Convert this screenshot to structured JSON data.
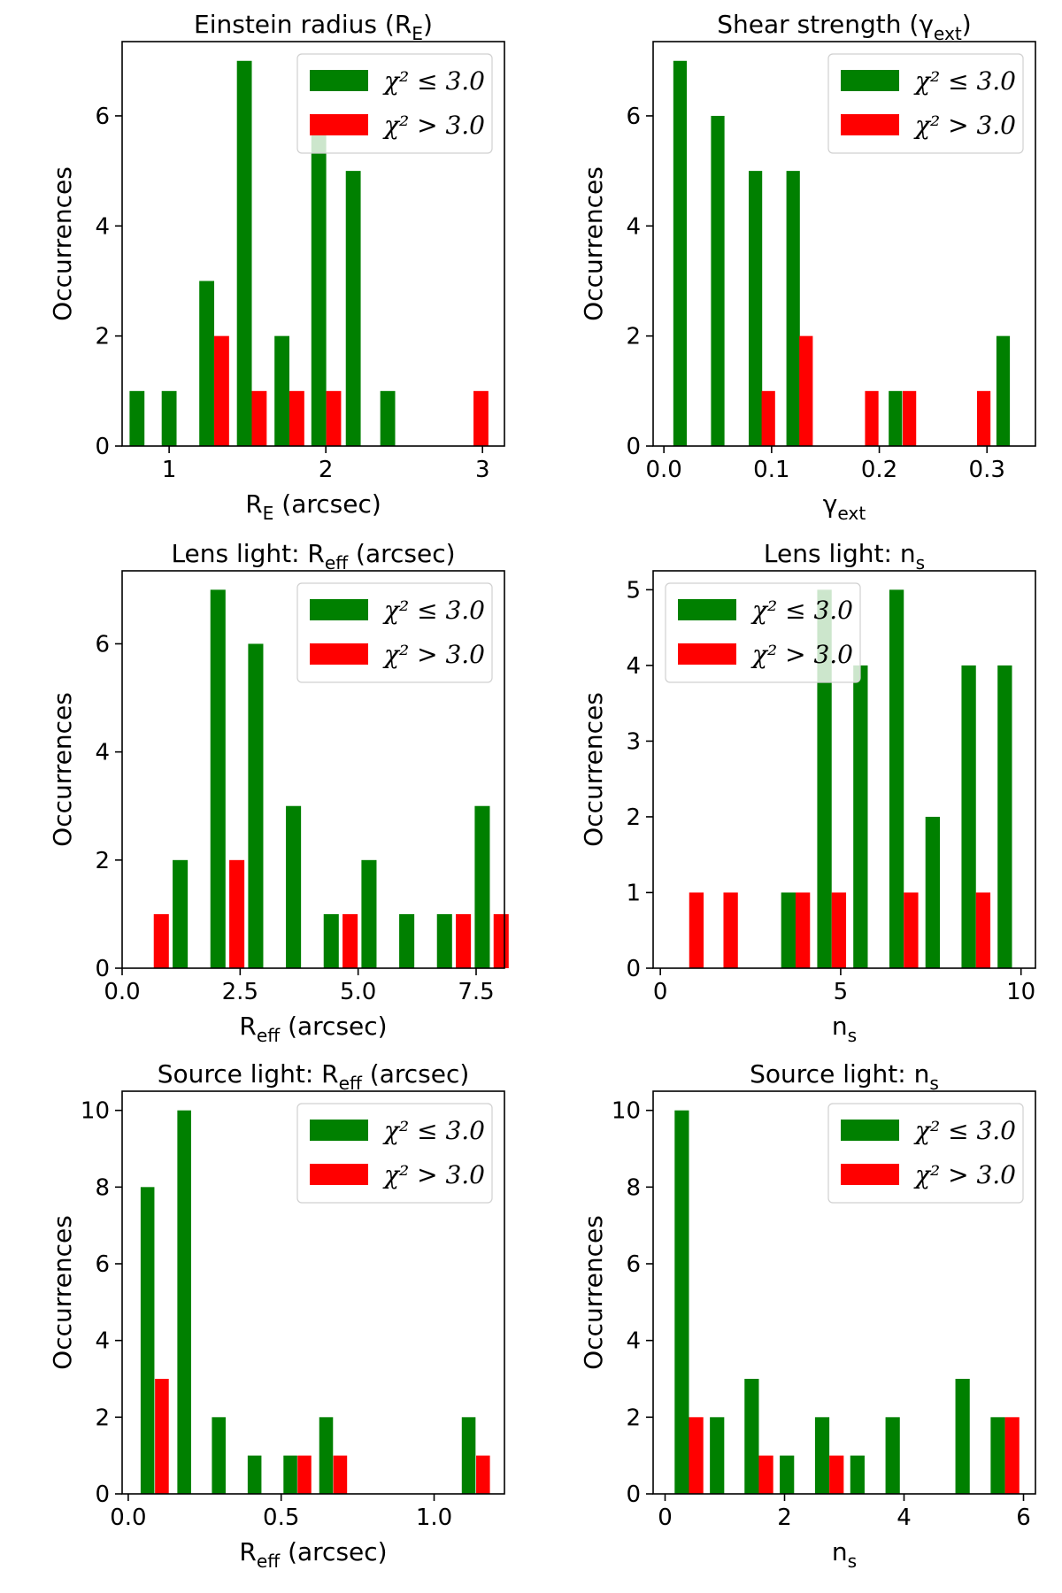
{
  "figure": {
    "chi_ok_color": "#008000",
    "chi_bad_color": "#ff0000"
  },
  "chart_data": [
    {
      "type": "bar",
      "title": "Einstein radius (R_E)",
      "title_main": "Einstein radius (R",
      "title_sub": "E",
      "title_tail": ")",
      "xlabel_main": "R",
      "xlabel_sub": "E",
      "xlabel_tail": " (arcsec)",
      "ylabel": "Occurrences",
      "xlim": [
        0.7,
        3.14
      ],
      "ylim": [
        0,
        7.35
      ],
      "xticks": [
        1,
        2,
        3
      ],
      "xtick_labels": [
        "1",
        "2",
        "3"
      ],
      "yticks": [
        0,
        2,
        4,
        6
      ],
      "ytick_labels": [
        "0",
        "2",
        "4",
        "6"
      ],
      "bar_width": 0.095,
      "legend_position": "top-right",
      "series": [
        {
          "name": "χ² ≤ 3.0",
          "legend_label": "χ² ≤ 3.0",
          "color": "#008000",
          "x": [
            0.795,
            1.0,
            1.24,
            1.48,
            1.72,
            1.955,
            2.175,
            2.395
          ],
          "values": [
            1,
            1,
            3,
            7,
            2,
            6,
            5,
            1
          ]
        },
        {
          "name": "χ² > 3.0",
          "legend_label": "χ² > 3.0",
          "color": "#ff0000",
          "x": [
            1.335,
            1.575,
            1.815,
            2.05,
            2.99
          ],
          "values": [
            2,
            1,
            1,
            1,
            1
          ]
        }
      ]
    },
    {
      "type": "bar",
      "title": "Shear strength (γ_ext)",
      "title_main": "Shear strength (γ",
      "title_sub": "ext",
      "title_tail": ")",
      "xlabel_main": "γ",
      "xlabel_sub": "ext",
      "xlabel_tail": "",
      "ylabel": "Occurrences",
      "xlim": [
        -0.01,
        0.345
      ],
      "ylim": [
        0,
        7.35
      ],
      "xticks": [
        0.0,
        0.1,
        0.2,
        0.3
      ],
      "xtick_labels": [
        "0.0",
        "0.1",
        "0.2",
        "0.3"
      ],
      "yticks": [
        0,
        2,
        4,
        6
      ],
      "ytick_labels": [
        "0",
        "2",
        "4",
        "6"
      ],
      "bar_width": 0.0125,
      "legend_position": "top-right",
      "series": [
        {
          "name": "χ² ≤ 3.0",
          "legend_label": "χ² ≤ 3.0",
          "color": "#008000",
          "x": [
            0.015,
            0.05,
            0.085,
            0.12,
            0.215,
            0.315
          ],
          "values": [
            7,
            6,
            5,
            5,
            1,
            2
          ]
        },
        {
          "name": "χ² > 3.0",
          "legend_label": "χ² > 3.0",
          "color": "#ff0000",
          "x": [
            0.097,
            0.132,
            0.193,
            0.228,
            0.297
          ],
          "values": [
            1,
            2,
            1,
            1,
            1
          ]
        }
      ]
    },
    {
      "type": "bar",
      "title": "Lens light: R_eff (arcsec)",
      "title_main": "Lens light: R",
      "title_sub": "eff",
      "title_tail": " (arcsec)",
      "xlabel_main": "R",
      "xlabel_sub": "eff",
      "xlabel_tail": " (arcsec)",
      "ylabel": "Occurrences",
      "xlim": [
        0.0,
        8.1
      ],
      "ylim": [
        0,
        7.35
      ],
      "xticks": [
        0.0,
        2.5,
        5.0,
        7.5
      ],
      "xtick_labels": [
        "0.0",
        "2.5",
        "5.0",
        "7.5"
      ],
      "yticks": [
        0,
        2,
        4,
        6
      ],
      "ytick_labels": [
        "0",
        "2",
        "4",
        "6"
      ],
      "bar_width": 0.32,
      "legend_position": "top-right",
      "series": [
        {
          "name": "χ² ≤ 3.0",
          "legend_label": "χ² ≤ 3.0",
          "color": "#008000",
          "x": [
            1.23,
            2.03,
            2.83,
            3.63,
            4.43,
            5.23,
            6.03,
            6.83,
            7.63
          ],
          "values": [
            2,
            7,
            6,
            3,
            1,
            2,
            1,
            1,
            3
          ]
        },
        {
          "name": "χ² > 3.0",
          "legend_label": "χ² > 3.0",
          "color": "#ff0000",
          "x": [
            0.83,
            2.43,
            4.83,
            7.23,
            8.03
          ],
          "values": [
            1,
            2,
            1,
            1,
            1
          ]
        }
      ]
    },
    {
      "type": "bar",
      "title": "Lens light: n_s",
      "title_main": "Lens light: n",
      "title_sub": "s",
      "title_tail": "",
      "xlabel_main": "n",
      "xlabel_sub": "s",
      "xlabel_tail": "",
      "ylabel": "Occurrences",
      "xlim": [
        -0.2,
        10.4
      ],
      "ylim": [
        0,
        5.25
      ],
      "xticks": [
        0,
        5,
        10
      ],
      "xtick_labels": [
        "0",
        "5",
        "10"
      ],
      "yticks": [
        0,
        1,
        2,
        3,
        4,
        5
      ],
      "ytick_labels": [
        "0",
        "1",
        "2",
        "3",
        "4",
        "5"
      ],
      "bar_width": 0.4,
      "legend_position": "top-left",
      "series": [
        {
          "name": "χ² ≤ 3.0",
          "legend_label": "χ² ≤ 3.0",
          "color": "#008000",
          "x": [
            3.55,
            4.55,
            5.55,
            6.55,
            7.55,
            8.55,
            9.55
          ],
          "values": [
            1,
            5,
            4,
            5,
            2,
            4,
            4
          ]
        },
        {
          "name": "χ² > 3.0",
          "legend_label": "χ² > 3.0",
          "color": "#ff0000",
          "x": [
            1.0,
            1.95,
            3.95,
            4.95,
            6.95,
            8.95
          ],
          "values": [
            1,
            1,
            1,
            1,
            1,
            1
          ]
        }
      ]
    },
    {
      "type": "bar",
      "title": "Source light: R_eff (arcsec)",
      "title_main": "Source light: R",
      "title_sub": "eff",
      "title_tail": " (arcsec)",
      "xlabel_main": "R",
      "xlabel_sub": "eff",
      "xlabel_tail": " (arcsec)",
      "ylabel": "Occurrences",
      "xlim": [
        -0.02,
        1.23
      ],
      "ylim": [
        0,
        10.5
      ],
      "xticks": [
        0.0,
        0.5,
        1.0
      ],
      "xtick_labels": [
        "0.0",
        "0.5",
        "1.0"
      ],
      "yticks": [
        0,
        2,
        4,
        6,
        8,
        10
      ],
      "ytick_labels": [
        "0",
        "2",
        "4",
        "6",
        "8",
        "10"
      ],
      "bar_width": 0.045,
      "legend_position": "top-right",
      "series": [
        {
          "name": "χ² ≤ 3.0",
          "legend_label": "χ² ≤ 3.0",
          "color": "#008000",
          "x": [
            0.063,
            0.183,
            0.296,
            0.413,
            0.53,
            0.647,
            1.113
          ],
          "values": [
            8,
            10,
            2,
            1,
            1,
            2,
            2
          ]
        },
        {
          "name": "χ² > 3.0",
          "legend_label": "χ² > 3.0",
          "color": "#ff0000",
          "x": [
            0.11,
            0.576,
            0.693,
            1.16
          ],
          "values": [
            3,
            1,
            1,
            1
          ]
        }
      ]
    },
    {
      "type": "bar",
      "title": "Source light: n_s",
      "title_main": "Source light: n",
      "title_sub": "s",
      "title_tail": "",
      "xlabel_main": "n",
      "xlabel_sub": "s",
      "xlabel_tail": "",
      "ylabel": "Occurrences",
      "xlim": [
        -0.2,
        6.2
      ],
      "ylim": [
        0,
        10.5
      ],
      "xticks": [
        0,
        2,
        4,
        6
      ],
      "xtick_labels": [
        "0",
        "2",
        "4",
        "6"
      ],
      "yticks": [
        0,
        2,
        4,
        6,
        8,
        10
      ],
      "ytick_labels": [
        "0",
        "2",
        "4",
        "6",
        "8",
        "10"
      ],
      "bar_width": 0.24,
      "legend_position": "top-right",
      "series": [
        {
          "name": "χ² ≤ 3.0",
          "legend_label": "χ² ≤ 3.0",
          "color": "#008000",
          "x": [
            0.28,
            0.87,
            1.45,
            2.04,
            2.63,
            3.22,
            3.81,
            4.98,
            5.57
          ],
          "values": [
            10,
            2,
            3,
            1,
            2,
            1,
            2,
            3,
            2
          ]
        },
        {
          "name": "χ² > 3.0",
          "legend_label": "χ² > 3.0",
          "color": "#ff0000",
          "x": [
            0.52,
            1.69,
            2.87,
            5.81
          ],
          "values": [
            2,
            1,
            1,
            2
          ]
        }
      ]
    }
  ]
}
